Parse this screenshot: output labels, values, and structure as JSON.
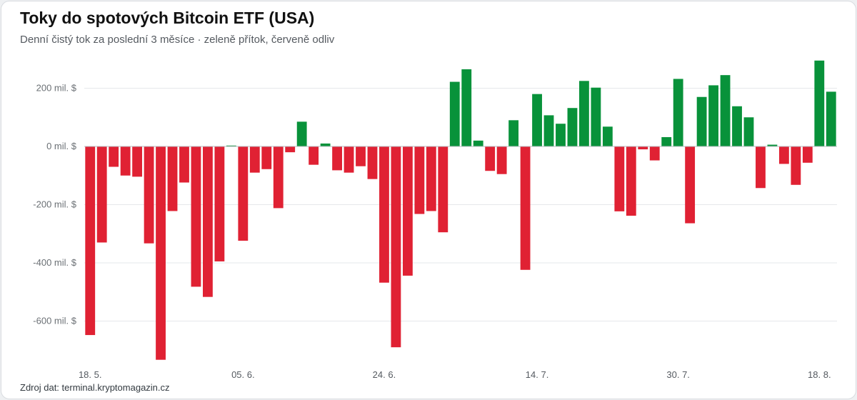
{
  "header": {
    "title": "Toky do spotových Bitcoin ETF (USA)",
    "subtitle": "Denní čistý tok za poslední 3 měsíce · zeleně přítok, červeně odliv"
  },
  "footer": {
    "source": "Zdroj dat: terminal.kryptomagazin.cz"
  },
  "colors": {
    "inflow": "#08923a",
    "outflow": "#e02133"
  },
  "chart_data": {
    "type": "bar",
    "y_unit": "mil. $",
    "ylim": [
      -740,
      300
    ],
    "y_ticks": [
      200,
      0,
      -200,
      -400,
      -600
    ],
    "y_tick_labels": [
      "200 mil. $",
      "0 mil. $",
      "-200 mil. $",
      "-400 mil. $",
      "-600 mil. $"
    ],
    "x_tick_labels": [
      {
        "label": "18. 5.",
        "index": 0
      },
      {
        "label": "05. 6.",
        "index": 13
      },
      {
        "label": "24. 6.",
        "index": 25
      },
      {
        "label": "14. 7.",
        "index": 38
      },
      {
        "label": "30. 7.",
        "index": 50
      },
      {
        "label": "18. 8.",
        "index": 62
      }
    ],
    "grid": true,
    "legend": "none",
    "values": [
      -648,
      -330,
      -70,
      -100,
      -104,
      -333,
      -733,
      -222,
      -124,
      -482,
      -517,
      -395,
      3,
      -324,
      -90,
      -78,
      -212,
      -20,
      85,
      -63,
      10,
      -82,
      -90,
      -68,
      -112,
      -468,
      -690,
      -444,
      -232,
      -222,
      -295,
      222,
      265,
      20,
      -84,
      -95,
      90,
      -424,
      180,
      107,
      78,
      132,
      225,
      202,
      68,
      -223,
      -238,
      -10,
      -48,
      32,
      232,
      -264,
      170,
      210,
      245,
      138,
      100,
      -143,
      6,
      -60,
      -132,
      -56,
      295,
      188
    ]
  }
}
